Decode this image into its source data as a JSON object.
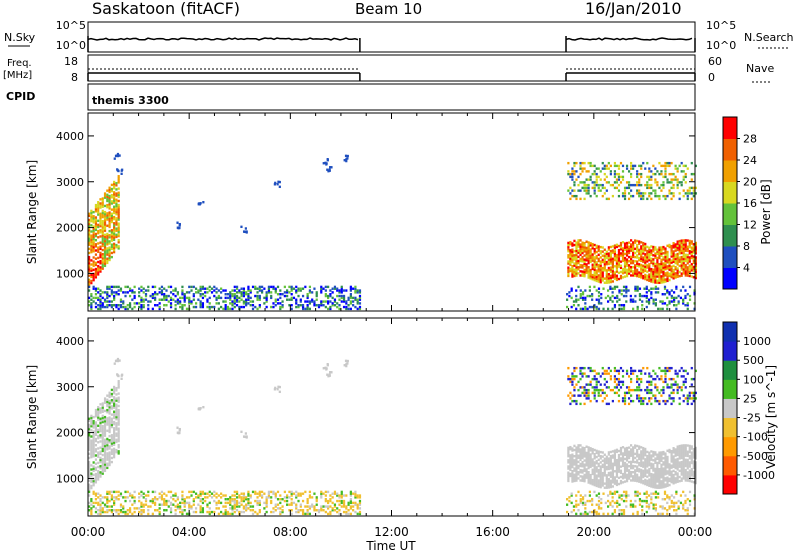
{
  "header": {
    "station": "Saskatoon (fitACF)",
    "beam": "Beam 10",
    "date": "16/Jan/2010"
  },
  "aux_panels": {
    "noise_left_label": "N.Sky",
    "noise_left_ticks": [
      "10^5",
      "10^0"
    ],
    "noise_right_ticks": [
      "10^5",
      "10^0"
    ],
    "noise_right_label": "N.Search",
    "freq_left_label_1": "Freq.",
    "freq_left_label_2": "[MHz]",
    "freq_left_ticks": [
      "18",
      "8"
    ],
    "freq_right_ticks": [
      "60",
      "0"
    ],
    "freq_right_label": "Nave",
    "cpid_label": "CPID",
    "cpid_value": "themis 3300"
  },
  "colors": {
    "power_scale": [
      "#0000ff",
      "#1f4fbf",
      "#2f8f4f",
      "#63c23a",
      "#d8d820",
      "#f0a000",
      "#f06000",
      "#ff0000"
    ],
    "velocity_scale": [
      "#ff0000",
      "#ff5a00",
      "#ff9a00",
      "#f0c030",
      "#c8c8c8",
      "#44bb22",
      "#1f8f3f",
      "#2020d0",
      "#1030b0"
    ]
  },
  "chart_data": [
    {
      "type": "heatmap",
      "name": "power",
      "xlabel": "Time UT",
      "ylabel": "Slant Range [km]",
      "colorbar_label": "Power [dB]",
      "colorbar_ticks": [
        "28",
        "24",
        "20",
        "16",
        "12",
        "8",
        "4"
      ],
      "y_ticks": [
        "4000",
        "3000",
        "2000",
        "1000"
      ],
      "x_ticks": [
        "00:00",
        "04:00",
        "08:00",
        "12:00",
        "16:00",
        "20:00",
        "00:00"
      ],
      "xlim_hours": [
        0,
        24
      ],
      "ylim_km": [
        180,
        4500
      ],
      "clim_db": [
        0,
        32
      ]
    },
    {
      "type": "heatmap",
      "name": "velocity",
      "xlabel": "Time UT",
      "ylabel": "Slant Range [km]",
      "colorbar_label": "Velocity [m s^-1]",
      "colorbar_ticks": [
        "1000",
        "500",
        "100",
        "25",
        "-25",
        "-100",
        "-500",
        "-1000"
      ],
      "y_ticks": [
        "4000",
        "3000",
        "2000",
        "1000"
      ],
      "x_ticks": [
        "00:00",
        "04:00",
        "08:00",
        "12:00",
        "16:00",
        "20:00",
        "00:00"
      ],
      "xlim_hours": [
        0,
        24
      ],
      "ylim_km": [
        180,
        4500
      ]
    }
  ],
  "data_windows_hours": [
    [
      0.0,
      10.75
    ],
    [
      18.9,
      24.0
    ]
  ],
  "time_label": "Time UT"
}
